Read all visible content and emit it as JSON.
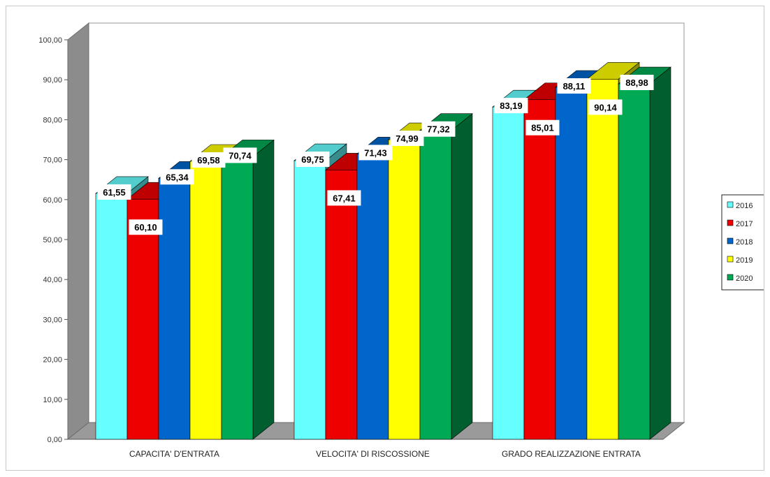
{
  "chart_data": {
    "type": "bar",
    "title": "",
    "xlabel": "",
    "ylabel": "",
    "ylim": [
      0,
      100
    ],
    "y_ticks": [
      "0,00",
      "10,00",
      "20,00",
      "30,00",
      "40,00",
      "50,00",
      "60,00",
      "70,00",
      "80,00",
      "90,00",
      "100,00"
    ],
    "grid": false,
    "legend_position": "right",
    "categories": [
      "CAPACITA' D'ENTRATA",
      "VELOCITA' DI RISCOSSIONE",
      "GRADO REALIZZAZIONE ENTRATA"
    ],
    "series": [
      {
        "name": "2016",
        "color": "#66ffff",
        "values": [
          61.55,
          69.75,
          83.19
        ],
        "labels": [
          "61,55",
          "69,75",
          "83,19"
        ]
      },
      {
        "name": "2017",
        "color": "#ee0000",
        "values": [
          60.1,
          67.41,
          85.01
        ],
        "labels": [
          "60,10",
          "67,41",
          "85,01"
        ]
      },
      {
        "name": "2018",
        "color": "#0066cc",
        "values": [
          65.34,
          71.43,
          88.11
        ],
        "labels": [
          "65,34",
          "71,43",
          "88,11"
        ]
      },
      {
        "name": "2019",
        "color": "#ffff00",
        "values": [
          69.58,
          74.99,
          90.14
        ],
        "labels": [
          "69,58",
          "74,99",
          "90,14"
        ]
      },
      {
        "name": "2020",
        "color": "#00aa55",
        "values": [
          70.74,
          77.32,
          88.98
        ],
        "labels": [
          "70,74",
          "77,32",
          "88,98"
        ]
      }
    ]
  }
}
